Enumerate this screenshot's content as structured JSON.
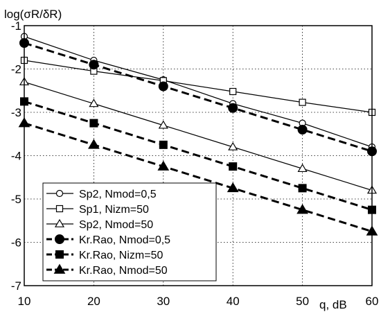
{
  "chart_data": {
    "type": "line",
    "title": "",
    "ylabel": "log(σR/δR)",
    "xlabel": "q, dB",
    "xlim": [
      10,
      60
    ],
    "ylim": [
      -7,
      -1
    ],
    "xticks": [
      10,
      20,
      30,
      40,
      50,
      60
    ],
    "yticks": [
      -1,
      -2,
      -3,
      -4,
      -5,
      -6,
      -7
    ],
    "grid": "dotted",
    "legend_position": "bottom-left",
    "x": [
      10,
      20,
      30,
      40,
      50,
      60
    ],
    "series": [
      {
        "name": "Sp2, Nmod=0,5",
        "marker": "circle-open",
        "style": "solid",
        "values": [
          -1.25,
          -1.8,
          -2.25,
          -2.8,
          -3.25,
          -3.8
        ]
      },
      {
        "name": "Sp1, Nizm=50",
        "marker": "square-open",
        "style": "solid",
        "values": [
          -1.8,
          -2.05,
          -2.27,
          -2.52,
          -2.77,
          -3.0
        ]
      },
      {
        "name": "Sp2, Nmod=50",
        "marker": "triangle-open",
        "style": "solid",
        "values": [
          -2.3,
          -2.8,
          -3.3,
          -3.8,
          -4.3,
          -4.8
        ]
      },
      {
        "name": "Kr.Rao, Nmod=0,5",
        "marker": "circle-filled",
        "style": "dashed",
        "values": [
          -1.4,
          -1.9,
          -2.4,
          -2.9,
          -3.4,
          -3.9
        ]
      },
      {
        "name": "Kr.Rao, Nizm=50",
        "marker": "square-filled",
        "style": "dashed",
        "values": [
          -2.75,
          -3.25,
          -3.75,
          -4.25,
          -4.75,
          -5.25
        ]
      },
      {
        "name": "Kr.Rao, Nmod=50",
        "marker": "triangle-filled",
        "style": "dashed",
        "values": [
          -3.25,
          -3.75,
          -4.25,
          -4.75,
          -5.25,
          -5.75
        ]
      }
    ]
  }
}
